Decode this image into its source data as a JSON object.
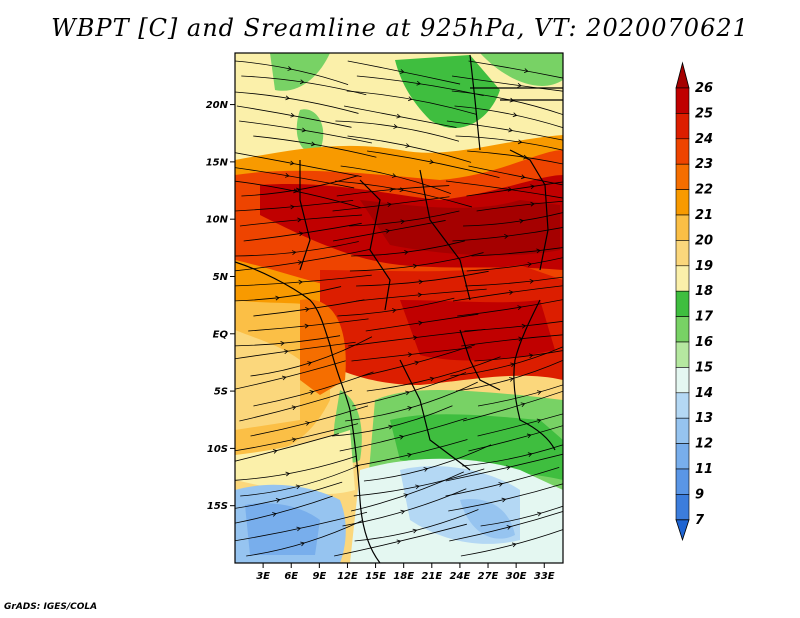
{
  "title": "WBPT [C] and Sreamline at 925hPa, VT: 2020070621",
  "footer": "GrADS: IGES/COLA",
  "map": {
    "lat_ticks": [
      {
        "lat": 20,
        "label": "20N"
      },
      {
        "lat": 15,
        "label": "15N"
      },
      {
        "lat": 10,
        "label": "10N"
      },
      {
        "lat": 5,
        "label": "5N"
      },
      {
        "lat": 0,
        "label": "EQ"
      },
      {
        "lat": -5,
        "label": "5S"
      },
      {
        "lat": -10,
        "label": "10S"
      },
      {
        "lat": -15,
        "label": "15S"
      }
    ],
    "lon_ticks": [
      {
        "lon": 3,
        "label": "3E"
      },
      {
        "lon": 6,
        "label": "6E"
      },
      {
        "lon": 9,
        "label": "9E"
      },
      {
        "lon": 12,
        "label": "12E"
      },
      {
        "lon": 15,
        "label": "15E"
      },
      {
        "lon": 18,
        "label": "18E"
      },
      {
        "lon": 21,
        "label": "21E"
      },
      {
        "lon": 24,
        "label": "24E"
      },
      {
        "lon": 27,
        "label": "27E"
      },
      {
        "lon": 30,
        "label": "30E"
      },
      {
        "lon": 33,
        "label": "33E"
      }
    ],
    "lon_range": [
      0,
      35
    ],
    "lat_range": [
      -20,
      24.5
    ]
  },
  "colorbar": {
    "levels": [
      {
        "label": "26",
        "color": "#a50000"
      },
      {
        "label": "25",
        "color": "#c00000"
      },
      {
        "label": "24",
        "color": "#dc1e00"
      },
      {
        "label": "23",
        "color": "#ee4400"
      },
      {
        "label": "22",
        "color": "#f56e00"
      },
      {
        "label": "21",
        "color": "#f89a00"
      },
      {
        "label": "20",
        "color": "#fbbf46"
      },
      {
        "label": "19",
        "color": "#fbd77c"
      },
      {
        "label": "18",
        "color": "#fbf0aa"
      },
      {
        "label": "17",
        "color": "#3fbe3f"
      },
      {
        "label": "16",
        "color": "#78d265"
      },
      {
        "label": "15",
        "color": "#b5e8a0"
      },
      {
        "label": "14",
        "color": "#e4f7f1"
      },
      {
        "label": "13",
        "color": "#b4d8f4"
      },
      {
        "label": "12",
        "color": "#96c4f0"
      },
      {
        "label": "11",
        "color": "#78aeec"
      },
      {
        "label": "9",
        "color": "#5a96e6"
      },
      {
        "label": "7",
        "color": "#3c7ddc"
      }
    ],
    "bottom_color": "#1e64d2"
  }
}
